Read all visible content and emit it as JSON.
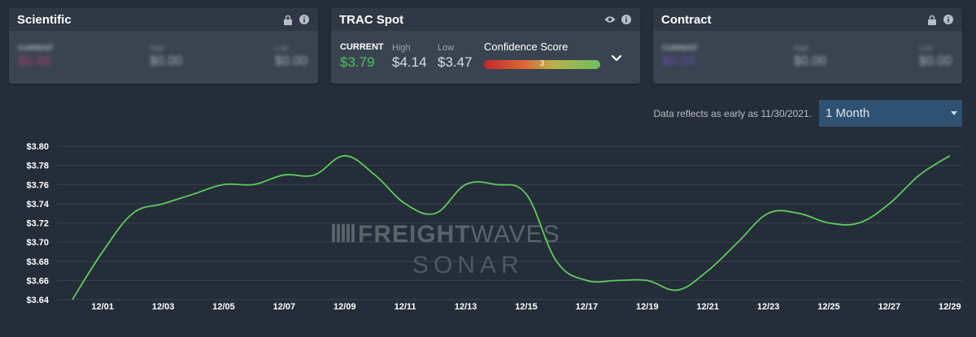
{
  "cards": {
    "scientific": {
      "title": "Scientific",
      "current_label": "CURRENT",
      "current_value": "$0.00",
      "high_label": "High",
      "high_value": "$0.00",
      "low_label": "Low",
      "low_value": "$0.00"
    },
    "trac_spot": {
      "title": "TRAC Spot",
      "current_label": "CURRENT",
      "current_value": "$3.79",
      "high_label": "High",
      "high_value": "$4.14",
      "low_label": "Low",
      "low_value": "$3.47",
      "confidence_label": "Confidence Score",
      "confidence_value": "3"
    },
    "contract": {
      "title": "Contract",
      "current_label": "CURRENT",
      "current_value": "$0.00",
      "high_label": "High",
      "high_value": "$0.00",
      "low_label": "Low",
      "low_value": "$0.00"
    }
  },
  "data_note": "Data reflects as early as 11/30/2021.",
  "range_select": {
    "selected": "1 Month"
  },
  "watermark": {
    "line1_bold": "FREIGHT",
    "line1_light": "WAVES",
    "line2": "SONAR"
  },
  "colors": {
    "line": "#5ecb5e",
    "current_green": "#4fc15a",
    "select_bg": "#2f5272"
  },
  "chart_data": {
    "type": "line",
    "x_ticks": [
      "12/01",
      "12/03",
      "12/05",
      "12/07",
      "12/09",
      "12/11",
      "12/13",
      "12/15",
      "12/17",
      "12/19",
      "12/21",
      "12/23",
      "12/25",
      "12/27",
      "12/29"
    ],
    "y_ticks": [
      "$3.80",
      "$3.78",
      "$3.76",
      "$3.74",
      "$3.72",
      "$3.70",
      "$3.68",
      "$3.66",
      "$3.64"
    ],
    "ylim": [
      3.64,
      3.8
    ],
    "x_dates": [
      "11/30",
      "12/01",
      "12/02",
      "12/03",
      "12/04",
      "12/05",
      "12/06",
      "12/07",
      "12/08",
      "12/09",
      "12/10",
      "12/11",
      "12/12",
      "12/13",
      "12/14",
      "12/15",
      "12/16",
      "12/17",
      "12/18",
      "12/19",
      "12/20",
      "12/21",
      "12/22",
      "12/23",
      "12/24",
      "12/25",
      "12/26",
      "12/27",
      "12/28",
      "12/29"
    ],
    "values": [
      3.64,
      3.69,
      3.73,
      3.74,
      3.75,
      3.76,
      3.76,
      3.77,
      3.77,
      3.79,
      3.77,
      3.74,
      3.73,
      3.76,
      3.76,
      3.75,
      3.68,
      3.66,
      3.66,
      3.66,
      3.65,
      3.67,
      3.7,
      3.73,
      3.73,
      3.72,
      3.72,
      3.74,
      3.77,
      3.79
    ],
    "grid": true
  }
}
